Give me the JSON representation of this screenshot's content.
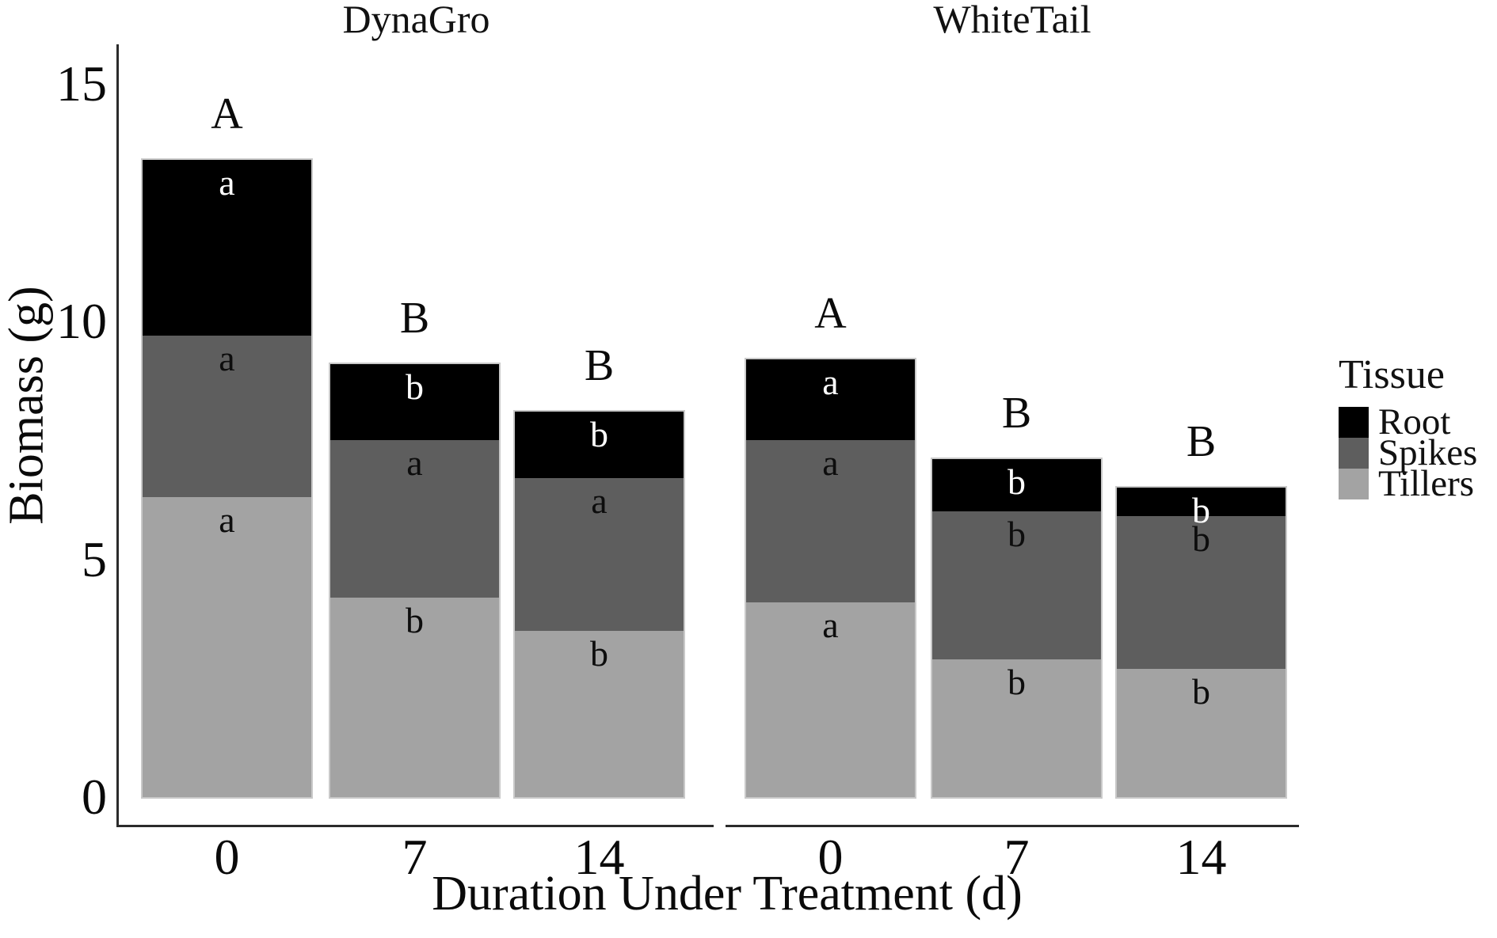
{
  "figure": {
    "background": "#ffffff",
    "axis_color": "#2b2b2b"
  },
  "chart_data": {
    "type": "bar",
    "stacked": true,
    "xlabel": "Duration Under Treatment (d)",
    "ylabel": "Biomass (g)",
    "ylim": [
      0,
      15
    ],
    "grid": false,
    "y_axis": {
      "ticks": [
        {
          "value": 15,
          "label": "15"
        },
        {
          "value": 10,
          "label": "10"
        },
        {
          "value": 5,
          "label": "5"
        },
        {
          "value": 0,
          "label": "0"
        }
      ]
    },
    "legend": {
      "title": "Tissue",
      "position": "right",
      "entries": [
        {
          "label": "Root",
          "color": "#000000"
        },
        {
          "label": "Spikes",
          "color": "#5e5e5e"
        },
        {
          "label": "Tillers",
          "color": "#a3a3a3"
        }
      ]
    },
    "stack_order_bottom_to_top": [
      "Tillers",
      "Spikes",
      "Root"
    ],
    "segment_colors": {
      "Root": "#000000",
      "Spikes": "#5e5e5e",
      "Tillers": "#a3a3a3"
    },
    "segment_letter_colors": {
      "Root": "#ffffff",
      "Spikes": "#0d0d0d",
      "Tillers": "#0d0d0d"
    },
    "facets": [
      {
        "label": "DynaGro",
        "bars": [
          {
            "category": "0",
            "group_letter": "A",
            "total": 13.4,
            "segments": [
              {
                "tissue": "Tillers",
                "value": 6.3,
                "letter": "a"
              },
              {
                "tissue": "Spikes",
                "value": 3.4,
                "letter": "a"
              },
              {
                "tissue": "Root",
                "value": 3.7,
                "letter": "a"
              }
            ]
          },
          {
            "category": "7",
            "group_letter": "B",
            "total": 9.1,
            "segments": [
              {
                "tissue": "Tillers",
                "value": 4.2,
                "letter": "b"
              },
              {
                "tissue": "Spikes",
                "value": 3.3,
                "letter": "a"
              },
              {
                "tissue": "Root",
                "value": 1.6,
                "letter": "b"
              }
            ]
          },
          {
            "category": "14",
            "group_letter": "B",
            "total": 8.1,
            "segments": [
              {
                "tissue": "Tillers",
                "value": 3.5,
                "letter": "b"
              },
              {
                "tissue": "Spikes",
                "value": 3.2,
                "letter": "a"
              },
              {
                "tissue": "Root",
                "value": 1.4,
                "letter": "b"
              }
            ]
          }
        ]
      },
      {
        "label": "WhiteTail",
        "bars": [
          {
            "category": "0",
            "group_letter": "A",
            "total": 9.2,
            "segments": [
              {
                "tissue": "Tillers",
                "value": 4.1,
                "letter": "a"
              },
              {
                "tissue": "Spikes",
                "value": 3.4,
                "letter": "a"
              },
              {
                "tissue": "Root",
                "value": 1.7,
                "letter": "a"
              }
            ]
          },
          {
            "category": "7",
            "group_letter": "B",
            "total": 7.1,
            "segments": [
              {
                "tissue": "Tillers",
                "value": 2.9,
                "letter": "b"
              },
              {
                "tissue": "Spikes",
                "value": 3.1,
                "letter": "b"
              },
              {
                "tissue": "Root",
                "value": 1.1,
                "letter": "b"
              }
            ]
          },
          {
            "category": "14",
            "group_letter": "B",
            "total": 6.5,
            "segments": [
              {
                "tissue": "Tillers",
                "value": 2.7,
                "letter": "b"
              },
              {
                "tissue": "Spikes",
                "value": 3.2,
                "letter": "b"
              },
              {
                "tissue": "Root",
                "value": 0.6,
                "letter": "b"
              }
            ]
          }
        ]
      }
    ]
  }
}
